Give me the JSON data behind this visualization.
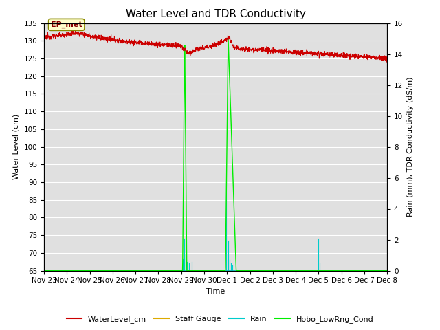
{
  "title": "Water Level and TDR Conductivity",
  "xlabel": "Time",
  "ylabel_left": "Water Level (cm)",
  "ylabel_right": "Rain (mm), TDR Conductivity (dS/m)",
  "ylim_left": [
    65,
    135
  ],
  "ylim_right": [
    0,
    16
  ],
  "yticks_left": [
    65,
    70,
    75,
    80,
    85,
    90,
    95,
    100,
    105,
    110,
    115,
    120,
    125,
    130,
    135
  ],
  "yticks_right": [
    0,
    2,
    4,
    6,
    8,
    10,
    12,
    14,
    16
  ],
  "annotation_text": "EP_met",
  "bg_color": "#e0e0e0",
  "grid_color": "#ffffff",
  "water_level_color": "#cc0000",
  "staff_gauge_color": "#ddaa00",
  "rain_color": "#00cccc",
  "hobo_cond_color": "#00ee00",
  "title_fontsize": 11,
  "axis_label_fontsize": 8,
  "tick_fontsize": 7.5
}
